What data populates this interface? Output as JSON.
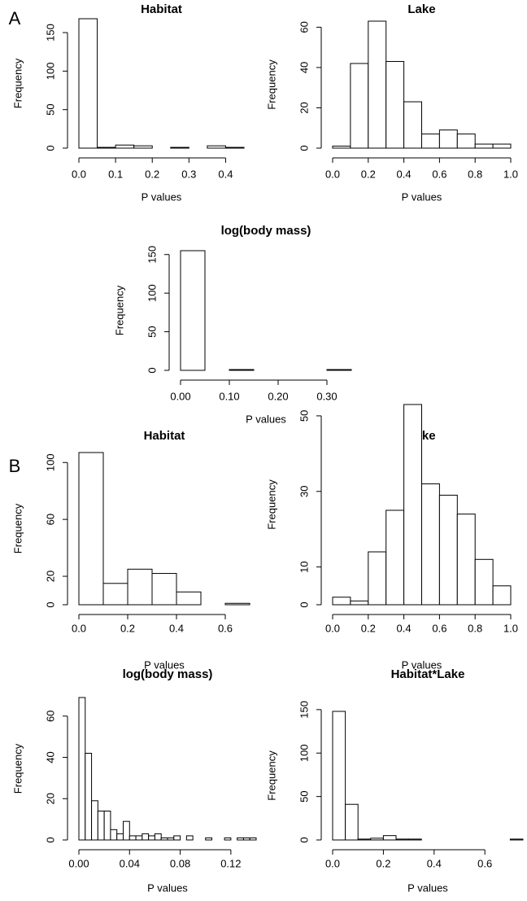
{
  "panel_labels": [
    "A",
    "B"
  ],
  "chart_data": [
    {
      "type": "histogram",
      "title": "Habitat",
      "xlabel": "P values",
      "ylabel": "Frequency",
      "bins": [
        0,
        0.05,
        0.1,
        0.15,
        0.2,
        0.25,
        0.3,
        0.35,
        0.4,
        0.45
      ],
      "values": [
        168,
        1,
        4,
        3,
        0,
        1,
        0,
        3,
        1
      ],
      "xlim": [
        0,
        0.45
      ],
      "ylim": [
        0,
        168
      ],
      "xticks": [
        {
          "value": 0,
          "label": "0.0"
        },
        0.1,
        0.2,
        0.3,
        0.4
      ],
      "yticks": [
        0,
        50,
        100,
        150
      ]
    },
    {
      "type": "histogram",
      "title": "Lake",
      "xlabel": "P values",
      "ylabel": "Frequency",
      "bins": [
        0,
        0.1,
        0.2,
        0.3,
        0.4,
        0.5,
        0.6,
        0.7,
        0.8,
        0.9,
        1
      ],
      "values": [
        1,
        42,
        63,
        43,
        23,
        7,
        9,
        7,
        2,
        2
      ],
      "xlim": [
        0,
        1
      ],
      "ylim": [
        0,
        63
      ],
      "xticks": [
        {
          "value": 0,
          "label": "0.0"
        },
        0.2,
        0.4,
        0.6,
        0.8,
        {
          "value": 1,
          "label": "1.0"
        }
      ],
      "yticks": [
        0,
        20,
        40,
        60
      ]
    },
    {
      "type": "histogram",
      "title": "log(body mass)",
      "xlabel": "P values",
      "ylabel": "Frequency",
      "bins": [
        0,
        0.05,
        0.1,
        0.15,
        0.2,
        0.25,
        0.3,
        0.35
      ],
      "values": [
        155,
        0,
        1,
        0,
        0,
        0,
        1
      ],
      "xlim": [
        0,
        0.35
      ],
      "ylim": [
        0,
        155
      ],
      "xticks": [
        {
          "value": 0,
          "label": "0.00"
        },
        {
          "value": 0.1,
          "label": "0.10"
        },
        {
          "value": 0.2,
          "label": "0.20"
        },
        {
          "value": 0.3,
          "label": "0.30"
        }
      ],
      "yticks": [
        0,
        50,
        100,
        150
      ]
    },
    {
      "type": "histogram",
      "title": "Habitat",
      "xlabel": "P values",
      "ylabel": "Frequency",
      "bins": [
        0,
        0.1,
        0.2,
        0.3,
        0.4,
        0.5,
        0.6,
        0.7
      ],
      "values": [
        107,
        15,
        25,
        22,
        9,
        0,
        1
      ],
      "xlim": [
        0,
        0.7
      ],
      "ylim": [
        0,
        107
      ],
      "xticks": [
        {
          "value": 0,
          "label": "0.0"
        },
        0.2,
        0.4,
        0.6
      ],
      "yticks": [
        0,
        20,
        60,
        100
      ]
    },
    {
      "type": "histogram",
      "title": "Lake",
      "xlabel": "P values",
      "ylabel": "Frequency",
      "bins": [
        0,
        0.1,
        0.2,
        0.3,
        0.4,
        0.5,
        0.6,
        0.7,
        0.8,
        0.9,
        1
      ],
      "values": [
        2,
        1,
        14,
        25,
        53,
        32,
        29,
        24,
        12,
        5
      ],
      "xlim": [
        0,
        1
      ],
      "ylim": [
        0,
        53
      ],
      "xticks": [
        {
          "value": 0,
          "label": "0.0"
        },
        0.2,
        0.4,
        0.6,
        0.8,
        {
          "value": 1,
          "label": "1.0"
        }
      ],
      "yticks": [
        0,
        10,
        30,
        50
      ]
    },
    {
      "type": "histogram",
      "title": "log(body mass)",
      "xlabel": "P values",
      "ylabel": "Frequency",
      "bins": [
        0,
        0.005,
        0.01,
        0.015,
        0.02,
        0.025,
        0.03,
        0.035,
        0.04,
        0.045,
        0.05,
        0.055,
        0.06,
        0.065,
        0.07,
        0.075,
        0.08,
        0.085,
        0.09,
        0.095,
        0.1,
        0.105,
        0.11,
        0.115,
        0.12,
        0.125,
        0.13,
        0.135,
        0.14
      ],
      "values": [
        69,
        42,
        19,
        14,
        14,
        5,
        3,
        9,
        2,
        2,
        3,
        2,
        3,
        1,
        1,
        2,
        0,
        2,
        0,
        0,
        1,
        0,
        0,
        1,
        0,
        1,
        1,
        1
      ],
      "xlim": [
        0,
        0.14
      ],
      "ylim": [
        0,
        69
      ],
      "xticks": [
        {
          "value": 0,
          "label": "0.00"
        },
        0.04,
        0.08,
        0.12
      ],
      "yticks": [
        0,
        20,
        40,
        60
      ]
    },
    {
      "type": "histogram",
      "title": "Habitat*Lake",
      "xlabel": "P values",
      "ylabel": "Frequency",
      "bins": [
        0,
        0.05,
        0.1,
        0.15,
        0.2,
        0.25,
        0.3,
        0.35,
        0.4,
        0.45,
        0.5,
        0.55,
        0.6,
        0.65,
        0.7,
        0.75
      ],
      "values": [
        148,
        41,
        1,
        2,
        5,
        1,
        1,
        0,
        0,
        0,
        0,
        0,
        0,
        0,
        1
      ],
      "xlim": [
        0,
        0.75
      ],
      "ylim": [
        0,
        148
      ],
      "xticks": [
        {
          "value": 0,
          "label": "0.0"
        },
        0.2,
        0.4,
        0.6
      ],
      "yticks": [
        0,
        50,
        100,
        150
      ]
    }
  ]
}
